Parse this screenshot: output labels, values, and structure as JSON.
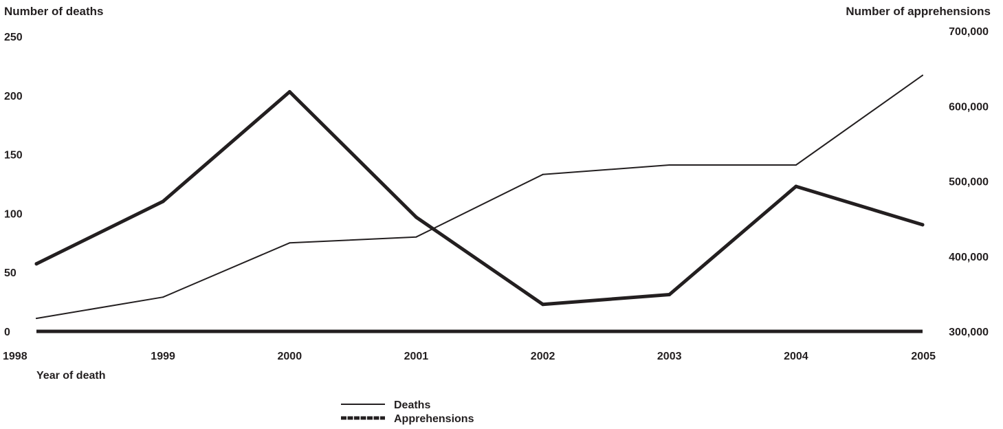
{
  "chart_data": {
    "type": "line",
    "xlabel": "Year of death",
    "ylabel_left": "Number of deaths",
    "ylabel_right": "Number of apprehensions",
    "categories": [
      "1998",
      "1999",
      "2000",
      "2001",
      "2002",
      "2003",
      "2004",
      "2005"
    ],
    "y_left": {
      "lim": [
        0,
        250
      ],
      "ticks": [
        0,
        50,
        100,
        150,
        200,
        250
      ],
      "tick_labels": [
        "0",
        "50",
        "100",
        "150",
        "200",
        "250"
      ]
    },
    "y_right": {
      "lim": [
        300000,
        700000
      ],
      "ticks": [
        300000,
        400000,
        500000,
        600000,
        700000
      ],
      "tick_labels": [
        "300,000",
        "400,000",
        "500,000",
        "600,000",
        "700,000"
      ]
    },
    "series": [
      {
        "name": "Deaths",
        "axis": "left",
        "style": "thin",
        "values": [
          11,
          29,
          75,
          80,
          133,
          141,
          141,
          217
        ]
      },
      {
        "name": "Apprehensions",
        "axis": "right",
        "style": "thick",
        "values": [
          390000,
          473000,
          619000,
          452000,
          336000,
          349000,
          493000,
          442000
        ]
      }
    ],
    "legend": {
      "placement": "bottom-center"
    },
    "grid": false,
    "line_color": "#231f20"
  }
}
